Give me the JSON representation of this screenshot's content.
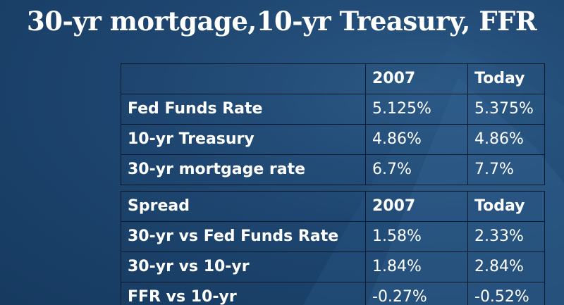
{
  "slide": {
    "title": "30-yr mortgage,10-yr Treasury, FFR"
  },
  "rates_table": {
    "header": [
      "",
      "2007",
      "Today"
    ],
    "rows": [
      [
        "Fed Funds Rate",
        "5.125%",
        "5.375%"
      ],
      [
        "10-yr Treasury",
        "4.86%",
        "4.86%"
      ],
      [
        "30-yr mortgage rate",
        "6.7%",
        "7.7%"
      ]
    ]
  },
  "spread_table": {
    "header": [
      "Spread",
      "2007",
      "Today"
    ],
    "rows": [
      [
        "30-yr vs Fed Funds Rate",
        "1.58%",
        "2.33%"
      ],
      [
        "30-yr vs 10-yr",
        "1.84%",
        "2.84%"
      ],
      [
        "FFR vs 10-yr",
        "-0.27%",
        "-0.52%"
      ]
    ]
  },
  "colors": {
    "background": "#1e4670",
    "border": "#08192c",
    "text": "#ffffff"
  }
}
